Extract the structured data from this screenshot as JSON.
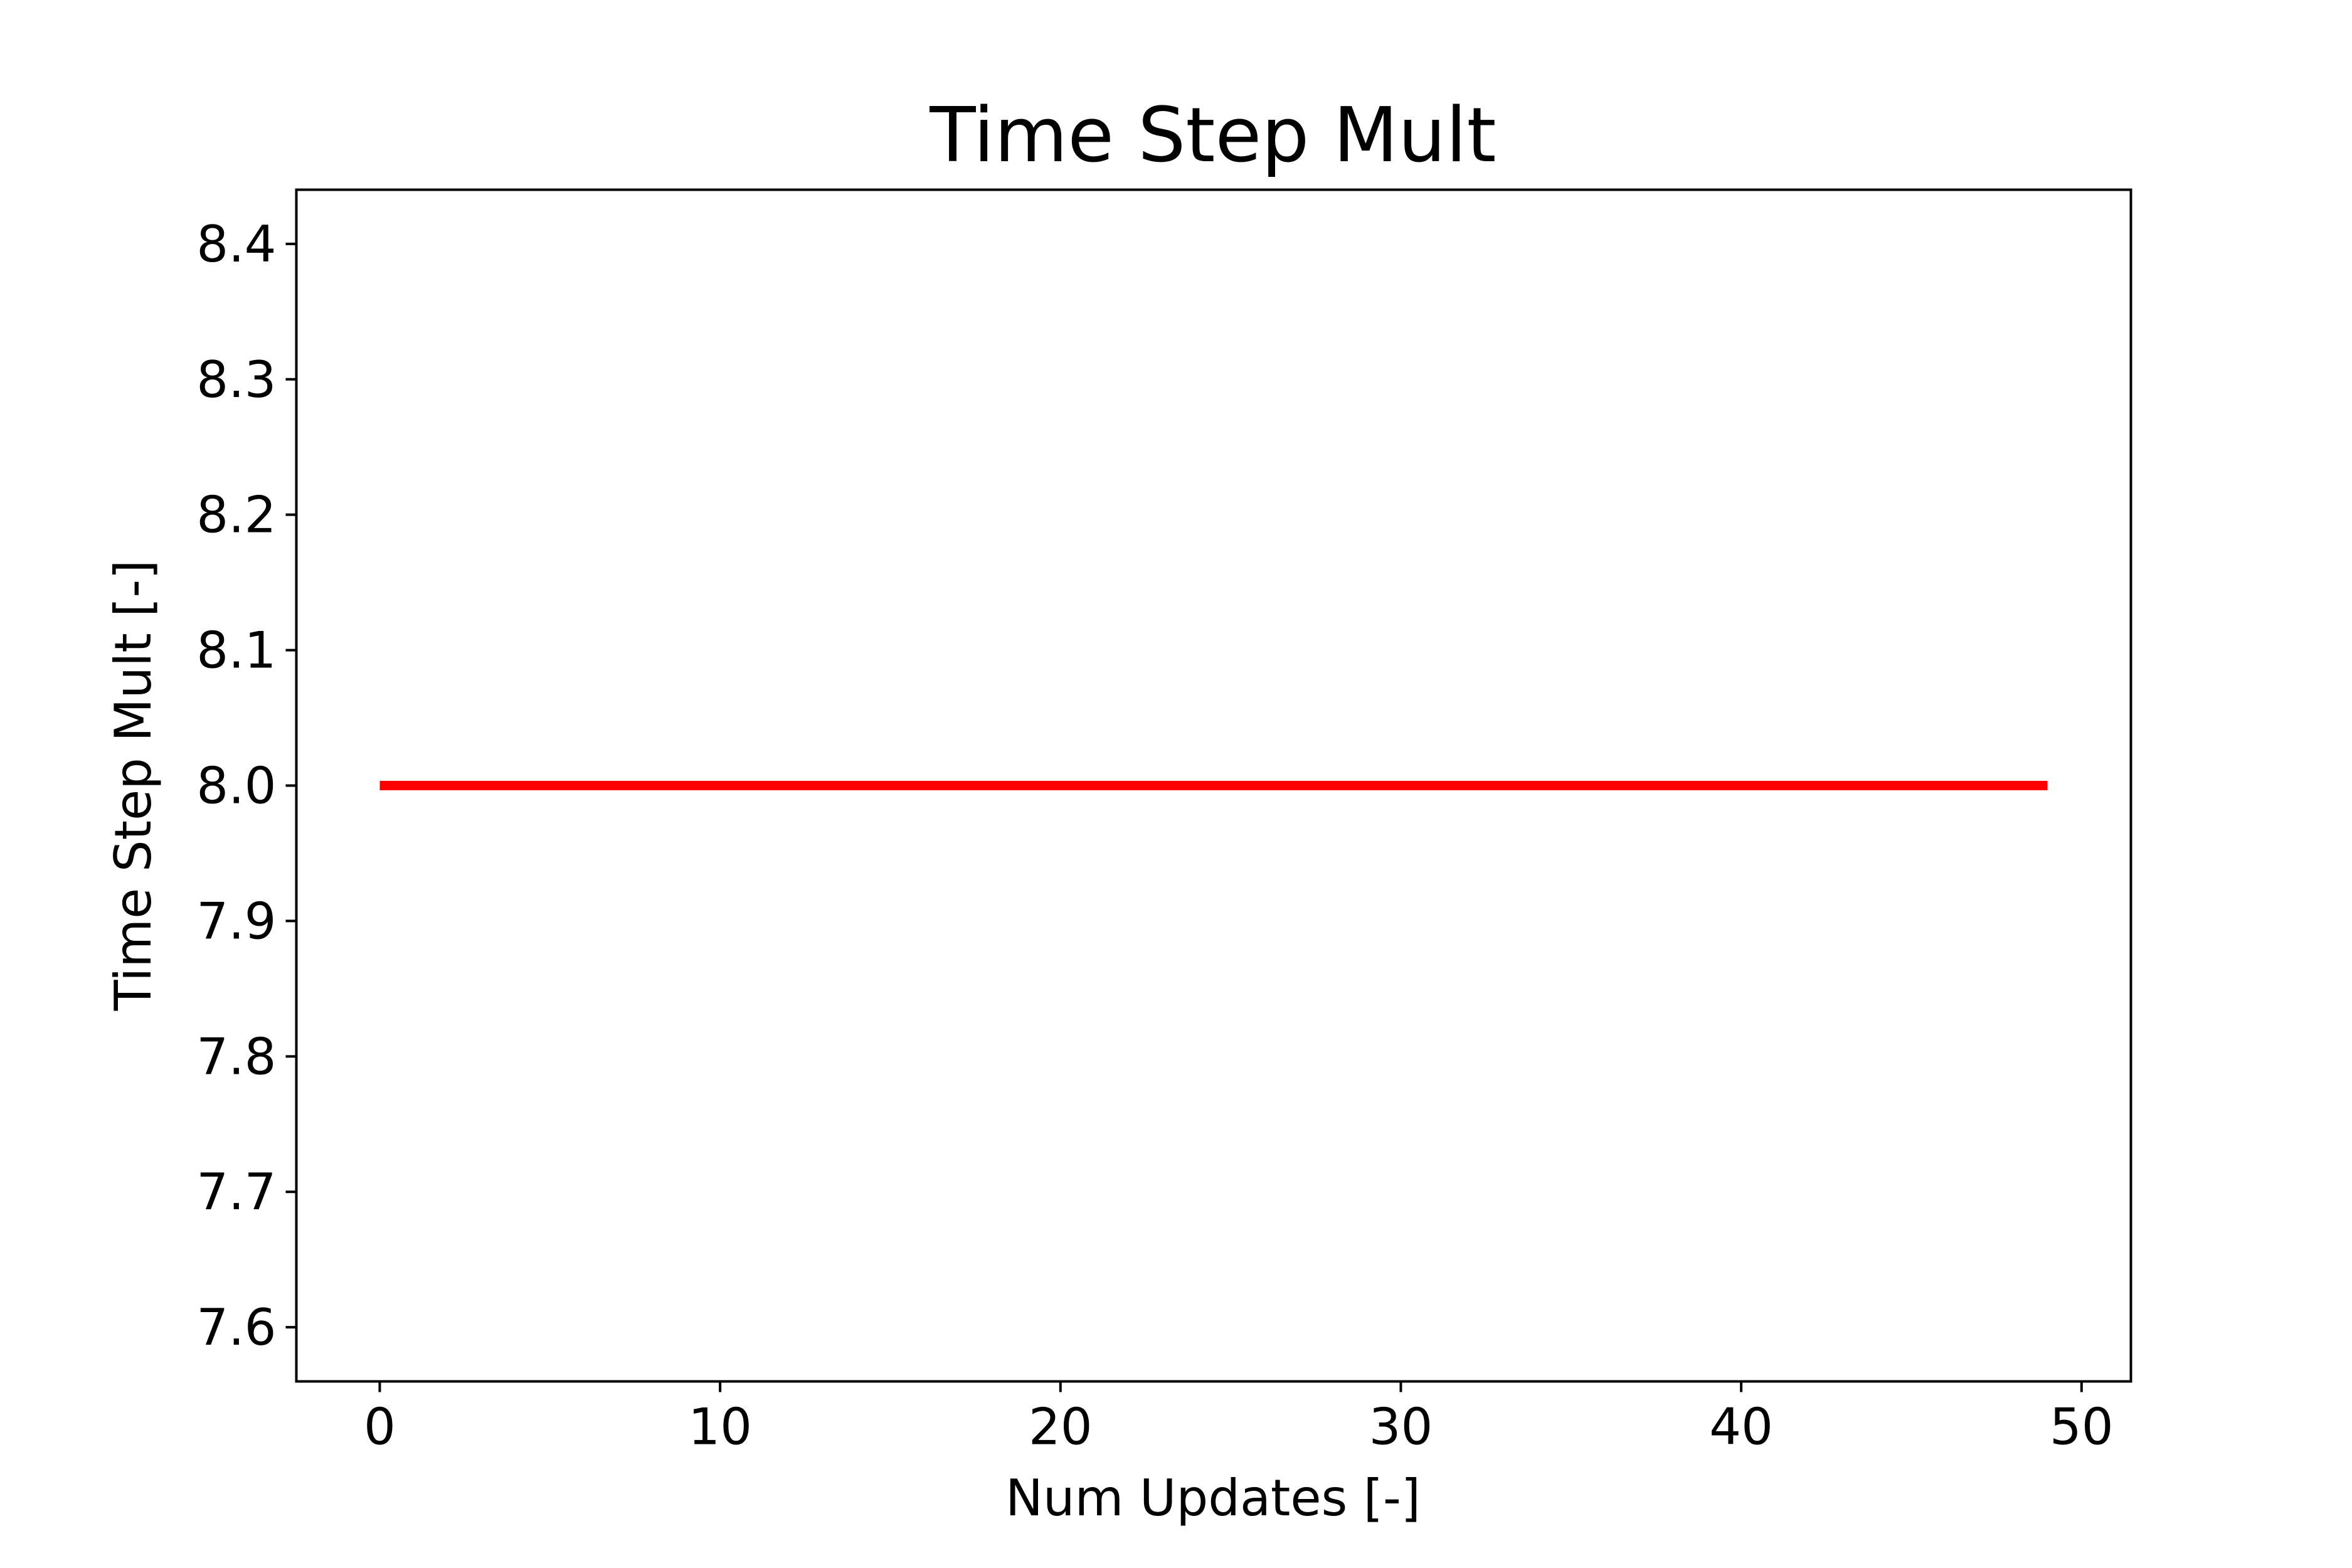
{
  "chart_data": {
    "type": "line",
    "title": "Time Step Mult",
    "xlabel": "Num Updates [-]",
    "ylabel": "Time Step Mult [-]",
    "xlim": [
      -2.45,
      51.45
    ],
    "ylim": [
      7.56,
      8.44
    ],
    "xticks": [
      0,
      10,
      20,
      30,
      40,
      50
    ],
    "xtick_labels": [
      "0",
      "10",
      "20",
      "30",
      "40",
      "50"
    ],
    "yticks": [
      7.6,
      7.7,
      7.8,
      7.9,
      8.0,
      8.1,
      8.2,
      8.3,
      8.4
    ],
    "ytick_labels": [
      "7.6",
      "7.7",
      "7.8",
      "7.9",
      "8.0",
      "8.1",
      "8.2",
      "8.3",
      "8.4"
    ],
    "grid": false,
    "series": [
      {
        "color": "#ff0000",
        "x": [
          0,
          1,
          2,
          3,
          4,
          5,
          6,
          7,
          8,
          9,
          10,
          11,
          12,
          13,
          14,
          15,
          16,
          17,
          18,
          19,
          20,
          21,
          22,
          23,
          24,
          25,
          26,
          27,
          28,
          29,
          30,
          31,
          32,
          33,
          34,
          35,
          36,
          37,
          38,
          39,
          40,
          41,
          42,
          43,
          44,
          45,
          46,
          47,
          48,
          49
        ],
        "y": [
          8.0,
          8.0,
          8.0,
          8.0,
          8.0,
          8.0,
          8.0,
          8.0,
          8.0,
          8.0,
          8.0,
          8.0,
          8.0,
          8.0,
          8.0,
          8.0,
          8.0,
          8.0,
          8.0,
          8.0,
          8.0,
          8.0,
          8.0,
          8.0,
          8.0,
          8.0,
          8.0,
          8.0,
          8.0,
          8.0,
          8.0,
          8.0,
          8.0,
          8.0,
          8.0,
          8.0,
          8.0,
          8.0,
          8.0,
          8.0,
          8.0,
          8.0,
          8.0,
          8.0,
          8.0,
          8.0,
          8.0,
          8.0,
          8.0,
          8.0
        ]
      }
    ]
  }
}
